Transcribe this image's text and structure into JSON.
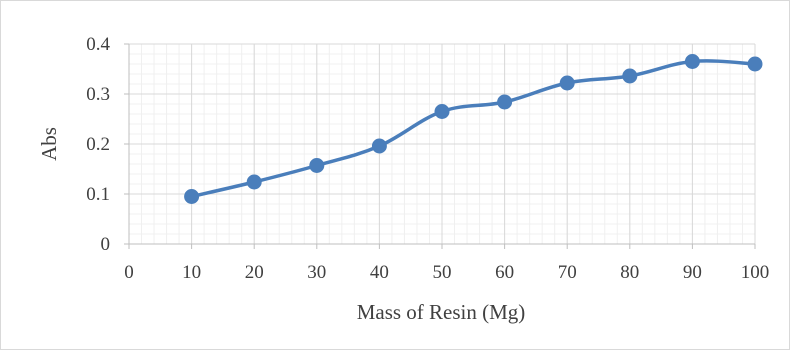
{
  "chart_data": {
    "type": "line",
    "xlabel": "Mass of Resin (Mg)",
    "ylabel": "Abs",
    "xlim": [
      0,
      100
    ],
    "ylim": [
      0,
      0.4
    ],
    "x_ticks": [
      "0",
      "10",
      "20",
      "30",
      "40",
      "50",
      "60",
      "70",
      "80",
      "90",
      "100"
    ],
    "y_ticks": [
      "0",
      "0.1",
      "0.2",
      "0.3",
      "0.4"
    ],
    "grid": true,
    "legend": "none",
    "series": [
      {
        "x": [
          10,
          20,
          30,
          40,
          50,
          60,
          70,
          80,
          90,
          100
        ],
        "values": [
          0.095,
          0.124,
          0.157,
          0.196,
          0.265,
          0.284,
          0.322,
          0.336,
          0.365,
          0.36
        ],
        "color": "#4a7ebb",
        "marker": "circle"
      }
    ]
  }
}
